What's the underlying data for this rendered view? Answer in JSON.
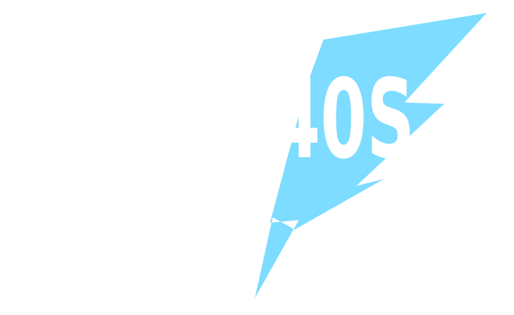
{
  "logo": {
    "text": "40S",
    "bolt_color": "#7ddcff",
    "text_color": "#ffffff",
    "background_color": "#ffffff",
    "icon": "lightning-bolt-icon"
  }
}
